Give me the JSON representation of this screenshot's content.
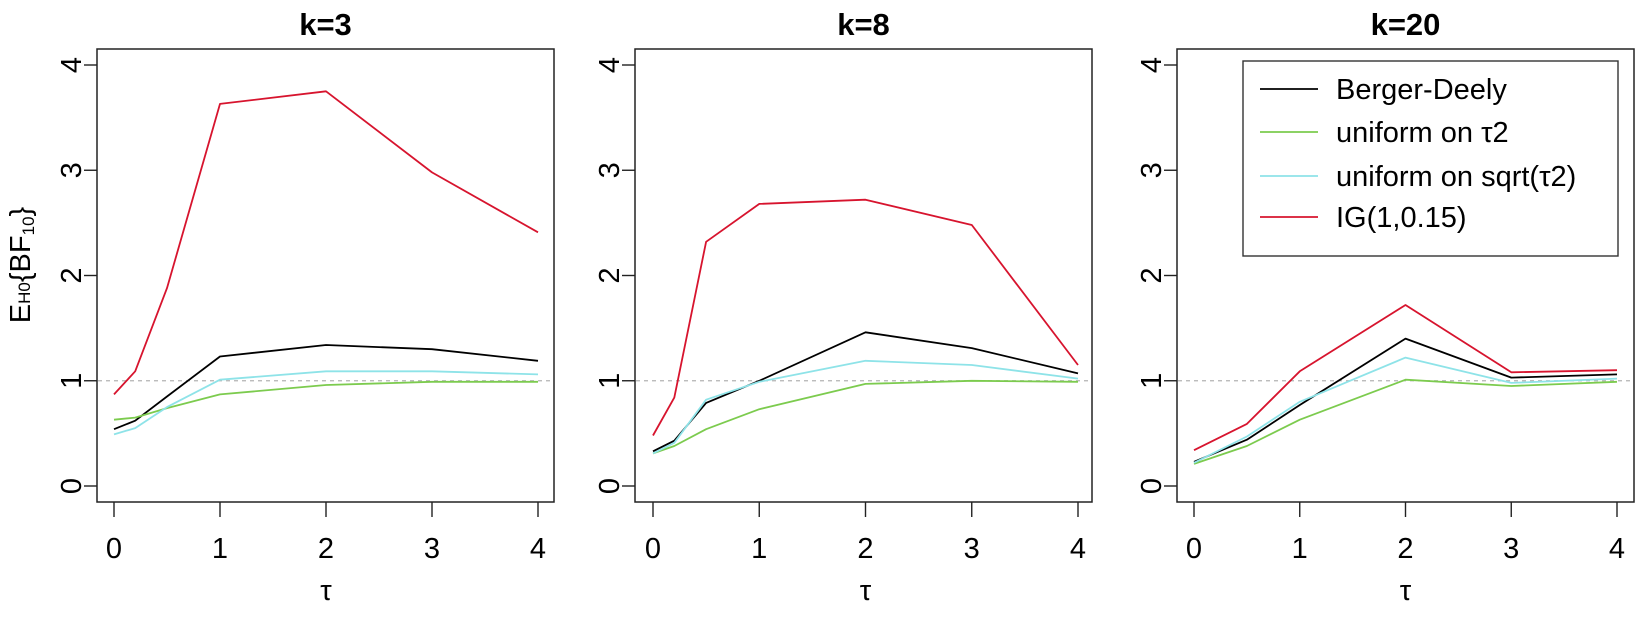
{
  "chart_data": [
    {
      "type": "line",
      "title": "k=3",
      "xlabel": "τ",
      "ylabel": "EH0{BF10}",
      "xlim": [
        0,
        4
      ],
      "ylim": [
        0,
        4
      ],
      "xticks": [
        0,
        1,
        2,
        3,
        4
      ],
      "yticks": [
        0,
        1,
        2,
        3,
        4
      ],
      "reference_line": {
        "y": 1,
        "style": "dashed",
        "color": "#b3b3b3"
      },
      "x": [
        0,
        0.2,
        0.5,
        1,
        2,
        3,
        4
      ],
      "series": [
        {
          "name": "Berger-Deely",
          "color": "#000000",
          "values": [
            0.54,
            0.62,
            0.85,
            1.23,
            1.34,
            1.3,
            1.19
          ]
        },
        {
          "name": "uniform on τ2",
          "color": "#7ccb4e",
          "values": [
            0.63,
            0.65,
            0.74,
            0.87,
            0.96,
            0.99,
            0.99
          ]
        },
        {
          "name": "uniform on sqrt(τ2)",
          "color": "#8ee3e8",
          "values": [
            0.49,
            0.55,
            0.75,
            1.01,
            1.09,
            1.09,
            1.06
          ]
        },
        {
          "name": "IG(1,0.15)",
          "color": "#d7142e",
          "values": [
            0.87,
            1.09,
            1.88,
            3.63,
            3.75,
            2.98,
            2.41
          ]
        }
      ],
      "grid": false,
      "legend": null
    },
    {
      "type": "line",
      "title": "k=8",
      "xlabel": "τ",
      "ylabel": "",
      "xlim": [
        0,
        4
      ],
      "ylim": [
        0,
        4
      ],
      "xticks": [
        0,
        1,
        2,
        3,
        4
      ],
      "yticks": [
        0,
        1,
        2,
        3,
        4
      ],
      "reference_line": {
        "y": 1,
        "style": "dashed",
        "color": "#b3b3b3"
      },
      "x": [
        0,
        0.2,
        0.5,
        1,
        2,
        3,
        4
      ],
      "series": [
        {
          "name": "Berger-Deely",
          "color": "#000000",
          "values": [
            0.33,
            0.43,
            0.79,
            1.0,
            1.46,
            1.31,
            1.07
          ]
        },
        {
          "name": "uniform on τ2",
          "color": "#7ccb4e",
          "values": [
            0.31,
            0.38,
            0.54,
            0.73,
            0.97,
            1.0,
            0.99
          ]
        },
        {
          "name": "uniform on sqrt(τ2)",
          "color": "#8ee3e8",
          "values": [
            0.31,
            0.41,
            0.82,
            0.99,
            1.19,
            1.15,
            1.02
          ]
        },
        {
          "name": "IG(1,0.15)",
          "color": "#d7142e",
          "values": [
            0.48,
            0.84,
            2.32,
            2.68,
            2.72,
            2.48,
            1.15
          ]
        }
      ],
      "grid": false,
      "legend": null
    },
    {
      "type": "line",
      "title": "k=20",
      "xlabel": "τ",
      "ylabel": "",
      "xlim": [
        0,
        4
      ],
      "ylim": [
        0,
        4
      ],
      "xticks": [
        0,
        1,
        2,
        3,
        4
      ],
      "yticks": [
        0,
        1,
        2,
        3,
        4
      ],
      "reference_line": {
        "y": 1,
        "style": "dashed",
        "color": "#b3b3b3"
      },
      "x": [
        0,
        0.5,
        1,
        2,
        3,
        4
      ],
      "series": [
        {
          "name": "Berger-Deely",
          "color": "#000000",
          "values": [
            0.23,
            0.44,
            0.77,
            1.4,
            1.03,
            1.06
          ]
        },
        {
          "name": "uniform on τ2",
          "color": "#7ccb4e",
          "values": [
            0.21,
            0.38,
            0.63,
            1.01,
            0.95,
            0.99
          ]
        },
        {
          "name": "uniform on sqrt(τ2)",
          "color": "#8ee3e8",
          "values": [
            0.22,
            0.47,
            0.8,
            1.22,
            0.98,
            1.02
          ]
        },
        {
          "name": "IG(1,0.15)",
          "color": "#d7142e",
          "values": [
            0.34,
            0.59,
            1.09,
            1.72,
            1.08,
            1.1
          ]
        }
      ],
      "grid": false,
      "legend": {
        "position": "topright",
        "entries": [
          "Berger-Deely",
          "uniform on τ2",
          "uniform on sqrt(τ2)",
          "IG(1,0.15)"
        ]
      }
    }
  ],
  "figure": {
    "ylabel_main": "E",
    "ylabel_sub": "H0",
    "ylabel_brace_open": "{BF",
    "ylabel_sub2": "10",
    "ylabel_brace_close": "}",
    "xlabel": "τ"
  }
}
